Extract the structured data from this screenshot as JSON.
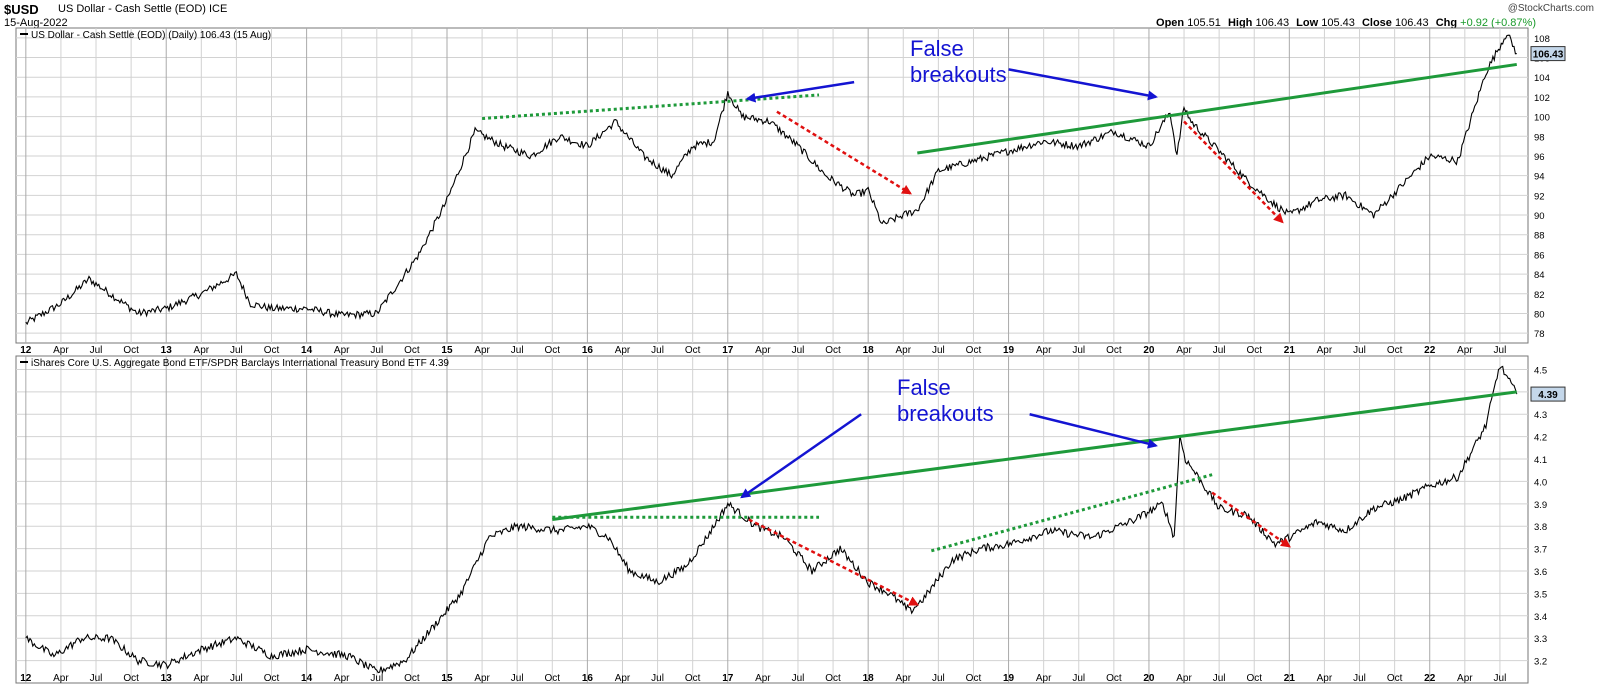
{
  "header": {
    "symbol": "$USD",
    "description": "US Dollar - Cash Settle (EOD) ICE",
    "date": "15-Aug-2022",
    "open_label": "Open",
    "open": "105.51",
    "high_label": "High",
    "high": "106.43",
    "low_label": "Low",
    "low": "105.43",
    "close_label": "Close",
    "close": "106.43",
    "chg_label": "Chg",
    "chg": "+0.92 (+0.87%)",
    "watermark": "@StockCharts.com"
  },
  "annotations": {
    "top": [
      "False",
      "breakouts"
    ],
    "bottom": [
      "False",
      "breakouts"
    ]
  },
  "colors": {
    "price": "#000000",
    "trendline": "#1e9a3a",
    "arrow_blue": "#1414d2",
    "arrow_red": "#e01010",
    "grid": "#d2d2d2",
    "label_bg": "#c4d7ea"
  },
  "chart_data": [
    {
      "type": "line",
      "title": "US Dollar - Cash Settle (EOD) (Daily) 106.43 (15 Aug)",
      "last_value_label": "106.43",
      "ylim": [
        77,
        109
      ],
      "yticks": [
        78,
        80,
        82,
        84,
        86,
        88,
        90,
        92,
        94,
        96,
        98,
        100,
        102,
        104,
        106,
        108
      ],
      "x": [
        2012.0,
        2012.25,
        2012.45,
        2012.6,
        2012.8,
        2013.0,
        2013.25,
        2013.5,
        2013.6,
        2013.75,
        2014.0,
        2014.25,
        2014.5,
        2014.6,
        2014.8,
        2015.0,
        2015.1,
        2015.2,
        2015.4,
        2015.6,
        2015.8,
        2016.0,
        2016.2,
        2016.4,
        2016.6,
        2016.75,
        2016.9,
        2017.0,
        2017.1,
        2017.3,
        2017.5,
        2017.7,
        2017.9,
        2018.0,
        2018.1,
        2018.25,
        2018.35,
        2018.5,
        2018.75,
        2019.0,
        2019.25,
        2019.5,
        2019.75,
        2020.0,
        2020.15,
        2020.2,
        2020.25,
        2020.3,
        2020.5,
        2020.7,
        2020.9,
        2021.0,
        2021.2,
        2021.4,
        2021.6,
        2021.8,
        2022.0,
        2022.2,
        2022.4,
        2022.55,
        2022.62
      ],
      "values": [
        79,
        81,
        83.5,
        82,
        80,
        80.5,
        82,
        84,
        81,
        80.5,
        80.5,
        79.8,
        80,
        82,
        86,
        91.5,
        95,
        98.5,
        97,
        96,
        98,
        97,
        99.5,
        96,
        94,
        97,
        97.5,
        102.5,
        100,
        99.5,
        97,
        94,
        92,
        92.5,
        89,
        90,
        90.5,
        94.5,
        95.5,
        96.5,
        97.5,
        97,
        98.5,
        97,
        100.5,
        96,
        101,
        99.5,
        96.5,
        93.5,
        91,
        90,
        91.5,
        92,
        90,
        93,
        96,
        95.5,
        104.5,
        108.5,
        106.4
      ],
      "x_ticks": [
        {
          "x": 2012.0,
          "label": "12",
          "year": true
        },
        {
          "x": 2012.25,
          "label": "Apr"
        },
        {
          "x": 2012.5,
          "label": "Jul"
        },
        {
          "x": 2012.75,
          "label": "Oct"
        },
        {
          "x": 2013.0,
          "label": "13",
          "year": true
        },
        {
          "x": 2013.25,
          "label": "Apr"
        },
        {
          "x": 2013.5,
          "label": "Jul"
        },
        {
          "x": 2013.75,
          "label": "Oct"
        },
        {
          "x": 2014.0,
          "label": "14",
          "year": true
        },
        {
          "x": 2014.25,
          "label": "Apr"
        },
        {
          "x": 2014.5,
          "label": "Jul"
        },
        {
          "x": 2014.75,
          "label": "Oct"
        },
        {
          "x": 2015.0,
          "label": "15",
          "year": true
        },
        {
          "x": 2015.25,
          "label": "Apr"
        },
        {
          "x": 2015.5,
          "label": "Jul"
        },
        {
          "x": 2015.75,
          "label": "Oct"
        },
        {
          "x": 2016.0,
          "label": "16",
          "year": true
        },
        {
          "x": 2016.25,
          "label": "Apr"
        },
        {
          "x": 2016.5,
          "label": "Jul"
        },
        {
          "x": 2016.75,
          "label": "Oct"
        },
        {
          "x": 2017.0,
          "label": "17",
          "year": true
        },
        {
          "x": 2017.25,
          "label": "Apr"
        },
        {
          "x": 2017.5,
          "label": "Jul"
        },
        {
          "x": 2017.75,
          "label": "Oct"
        },
        {
          "x": 2018.0,
          "label": "18",
          "year": true
        },
        {
          "x": 2018.25,
          "label": "Apr"
        },
        {
          "x": 2018.5,
          "label": "Jul"
        },
        {
          "x": 2018.75,
          "label": "Oct"
        },
        {
          "x": 2019.0,
          "label": "19",
          "year": true
        },
        {
          "x": 2019.25,
          "label": "Apr"
        },
        {
          "x": 2019.5,
          "label": "Jul"
        },
        {
          "x": 2019.75,
          "label": "Oct"
        },
        {
          "x": 2020.0,
          "label": "20",
          "year": true
        },
        {
          "x": 2020.25,
          "label": "Apr"
        },
        {
          "x": 2020.5,
          "label": "Jul"
        },
        {
          "x": 2020.75,
          "label": "Oct"
        },
        {
          "x": 2021.0,
          "label": "21",
          "year": true
        },
        {
          "x": 2021.25,
          "label": "Apr"
        },
        {
          "x": 2021.5,
          "label": "Jul"
        },
        {
          "x": 2021.75,
          "label": "Oct"
        },
        {
          "x": 2022.0,
          "label": "22",
          "year": true
        },
        {
          "x": 2022.25,
          "label": "Apr"
        },
        {
          "x": 2022.5,
          "label": "Jul"
        }
      ],
      "trendlines": [
        {
          "style": "dotted",
          "color": "#1e9a3a",
          "from": [
            2015.25,
            99.8
          ],
          "to": [
            2017.65,
            102.2
          ]
        },
        {
          "style": "solid",
          "color": "#1e9a3a",
          "from": [
            2018.35,
            96.3
          ],
          "to": [
            2022.62,
            105.3
          ]
        }
      ],
      "arrows": [
        {
          "color": "#1414d2",
          "from": [
            2017.9,
            103.5
          ],
          "to": [
            2017.14,
            101.8
          ]
        },
        {
          "color": "#1414d2",
          "from": [
            2019.0,
            104.8
          ],
          "to": [
            2020.05,
            102.0
          ]
        },
        {
          "color": "#e01010",
          "dashed": true,
          "from": [
            2017.35,
            100.5
          ],
          "to": [
            2018.3,
            92.2
          ]
        },
        {
          "color": "#e01010",
          "dashed": true,
          "from": [
            2020.25,
            99.5
          ],
          "to": [
            2020.95,
            89.3
          ]
        }
      ]
    },
    {
      "type": "line",
      "title": "iShares Core U.S. Aggregate Bond ETF/SPDR Barclays International Treasury Bond ETF 4.39",
      "last_value_label": "4.39",
      "ylim": [
        3.1,
        4.56
      ],
      "yticks": [
        3.2,
        3.3,
        3.4,
        3.5,
        3.6,
        3.7,
        3.8,
        3.9,
        4.0,
        4.1,
        4.2,
        4.3,
        4.4,
        4.5
      ],
      "x": [
        2012.0,
        2012.2,
        2012.4,
        2012.6,
        2012.8,
        2013.0,
        2013.25,
        2013.5,
        2013.75,
        2014.0,
        2014.3,
        2014.5,
        2014.7,
        2014.9,
        2015.1,
        2015.3,
        2015.5,
        2015.8,
        2016.0,
        2016.15,
        2016.3,
        2016.5,
        2016.7,
        2016.85,
        2017.0,
        2017.2,
        2017.4,
        2017.6,
        2017.8,
        2018.0,
        2018.15,
        2018.3,
        2018.4,
        2018.6,
        2018.8,
        2019.0,
        2019.3,
        2019.6,
        2019.9,
        2020.1,
        2020.18,
        2020.22,
        2020.26,
        2020.35,
        2020.5,
        2020.7,
        2020.9,
        2021.0,
        2021.2,
        2021.4,
        2021.6,
        2021.8,
        2022.0,
        2022.2,
        2022.4,
        2022.5,
        2022.62
      ],
      "values": [
        3.3,
        3.22,
        3.3,
        3.3,
        3.2,
        3.18,
        3.25,
        3.3,
        3.22,
        3.25,
        3.22,
        3.15,
        3.2,
        3.35,
        3.5,
        3.75,
        3.8,
        3.78,
        3.8,
        3.75,
        3.6,
        3.55,
        3.62,
        3.75,
        3.9,
        3.8,
        3.75,
        3.6,
        3.7,
        3.55,
        3.5,
        3.42,
        3.48,
        3.65,
        3.7,
        3.72,
        3.78,
        3.75,
        3.83,
        3.9,
        3.75,
        4.2,
        4.1,
        4.02,
        3.88,
        3.85,
        3.72,
        3.75,
        3.82,
        3.78,
        3.88,
        3.92,
        3.98,
        4.02,
        4.25,
        4.52,
        4.39
      ],
      "x_ticks": [
        {
          "x": 2012.0,
          "label": "12",
          "year": true
        },
        {
          "x": 2012.25,
          "label": "Apr"
        },
        {
          "x": 2012.5,
          "label": "Jul"
        },
        {
          "x": 2012.75,
          "label": "Oct"
        },
        {
          "x": 2013.0,
          "label": "13",
          "year": true
        },
        {
          "x": 2013.25,
          "label": "Apr"
        },
        {
          "x": 2013.5,
          "label": "Jul"
        },
        {
          "x": 2013.75,
          "label": "Oct"
        },
        {
          "x": 2014.0,
          "label": "14",
          "year": true
        },
        {
          "x": 2014.25,
          "label": "Apr"
        },
        {
          "x": 2014.5,
          "label": "Jul"
        },
        {
          "x": 2014.75,
          "label": "Oct"
        },
        {
          "x": 2015.0,
          "label": "15",
          "year": true
        },
        {
          "x": 2015.25,
          "label": "Apr"
        },
        {
          "x": 2015.5,
          "label": "Jul"
        },
        {
          "x": 2015.75,
          "label": "Oct"
        },
        {
          "x": 2016.0,
          "label": "16",
          "year": true
        },
        {
          "x": 2016.25,
          "label": "Apr"
        },
        {
          "x": 2016.5,
          "label": "Jul"
        },
        {
          "x": 2016.75,
          "label": "Oct"
        },
        {
          "x": 2017.0,
          "label": "17",
          "year": true
        },
        {
          "x": 2017.25,
          "label": "Apr"
        },
        {
          "x": 2017.5,
          "label": "Jul"
        },
        {
          "x": 2017.75,
          "label": "Oct"
        },
        {
          "x": 2018.0,
          "label": "18",
          "year": true
        },
        {
          "x": 2018.25,
          "label": "Apr"
        },
        {
          "x": 2018.5,
          "label": "Jul"
        },
        {
          "x": 2018.75,
          "label": "Oct"
        },
        {
          "x": 2019.0,
          "label": "19",
          "year": true
        },
        {
          "x": 2019.25,
          "label": "Apr"
        },
        {
          "x": 2019.5,
          "label": "Jul"
        },
        {
          "x": 2019.75,
          "label": "Oct"
        },
        {
          "x": 2020.0,
          "label": "20",
          "year": true
        },
        {
          "x": 2020.25,
          "label": "Apr"
        },
        {
          "x": 2020.5,
          "label": "Jul"
        },
        {
          "x": 2020.75,
          "label": "Oct"
        },
        {
          "x": 2021.0,
          "label": "21",
          "year": true
        },
        {
          "x": 2021.25,
          "label": "Apr"
        },
        {
          "x": 2021.5,
          "label": "Jul"
        },
        {
          "x": 2021.75,
          "label": "Oct"
        },
        {
          "x": 2022.0,
          "label": "22",
          "year": true
        },
        {
          "x": 2022.25,
          "label": "Apr"
        },
        {
          "x": 2022.5,
          "label": "Jul"
        }
      ],
      "trendlines": [
        {
          "style": "solid",
          "color": "#1e9a3a",
          "from": [
            2015.75,
            3.83
          ],
          "to": [
            2022.62,
            4.4
          ]
        },
        {
          "style": "dotted",
          "color": "#1e9a3a",
          "from": [
            2015.75,
            3.84
          ],
          "to": [
            2017.65,
            3.84
          ]
        },
        {
          "style": "dotted",
          "color": "#1e9a3a",
          "from": [
            2018.45,
            3.69
          ],
          "to": [
            2020.45,
            4.03
          ]
        }
      ],
      "arrows": [
        {
          "color": "#1414d2",
          "from": [
            2017.95,
            4.3
          ],
          "to": [
            2017.1,
            3.93
          ]
        },
        {
          "color": "#1414d2",
          "from": [
            2019.15,
            4.3
          ],
          "to": [
            2020.05,
            4.16
          ]
        },
        {
          "color": "#e01010",
          "dashed": true,
          "from": [
            2017.15,
            3.83
          ],
          "to": [
            2018.35,
            3.45
          ]
        },
        {
          "color": "#e01010",
          "dashed": true,
          "from": [
            2020.45,
            3.95
          ],
          "to": [
            2021.0,
            3.71
          ]
        }
      ]
    }
  ]
}
